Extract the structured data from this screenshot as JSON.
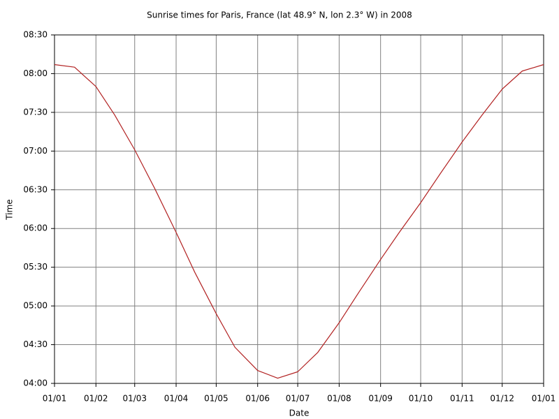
{
  "chart_data": {
    "type": "line",
    "title": "Sunrise times for Paris, France (lat 48.9° N, lon 2.3° W) in 2008",
    "xlabel": "Date",
    "ylabel": "Time",
    "color": "#b22222",
    "grid": true,
    "x": [
      0,
      15,
      31,
      45,
      60,
      75,
      91,
      105,
      121,
      135,
      152,
      167,
      182,
      197,
      213,
      228,
      244,
      258,
      274,
      289,
      305,
      320,
      335,
      350,
      366
    ],
    "values": [
      487,
      485,
      470,
      448,
      421,
      391,
      357,
      326,
      294,
      268,
      250,
      244,
      249,
      264,
      287,
      311,
      336,
      357,
      380,
      403,
      427,
      448,
      468,
      482,
      487
    ],
    "xlim": [
      0,
      366
    ],
    "xticks": [
      {
        "value": 0,
        "label": "01/01"
      },
      {
        "value": 31,
        "label": "01/02"
      },
      {
        "value": 60,
        "label": "01/03"
      },
      {
        "value": 91,
        "label": "01/04"
      },
      {
        "value": 121,
        "label": "01/05"
      },
      {
        "value": 152,
        "label": "01/06"
      },
      {
        "value": 182,
        "label": "01/07"
      },
      {
        "value": 213,
        "label": "01/08"
      },
      {
        "value": 244,
        "label": "01/09"
      },
      {
        "value": 274,
        "label": "01/10"
      },
      {
        "value": 305,
        "label": "01/11"
      },
      {
        "value": 335,
        "label": "01/12"
      },
      {
        "value": 366,
        "label": "01/01"
      }
    ],
    "ylim": [
      240,
      510
    ],
    "yticks": [
      {
        "value": 240,
        "label": "04:00"
      },
      {
        "value": 270,
        "label": "04:30"
      },
      {
        "value": 300,
        "label": "05:00"
      },
      {
        "value": 330,
        "label": "05:30"
      },
      {
        "value": 360,
        "label": "06:00"
      },
      {
        "value": 390,
        "label": "06:30"
      },
      {
        "value": 420,
        "label": "07:00"
      },
      {
        "value": 450,
        "label": "07:30"
      },
      {
        "value": 480,
        "label": "08:00"
      },
      {
        "value": 510,
        "label": "08:30"
      }
    ]
  }
}
